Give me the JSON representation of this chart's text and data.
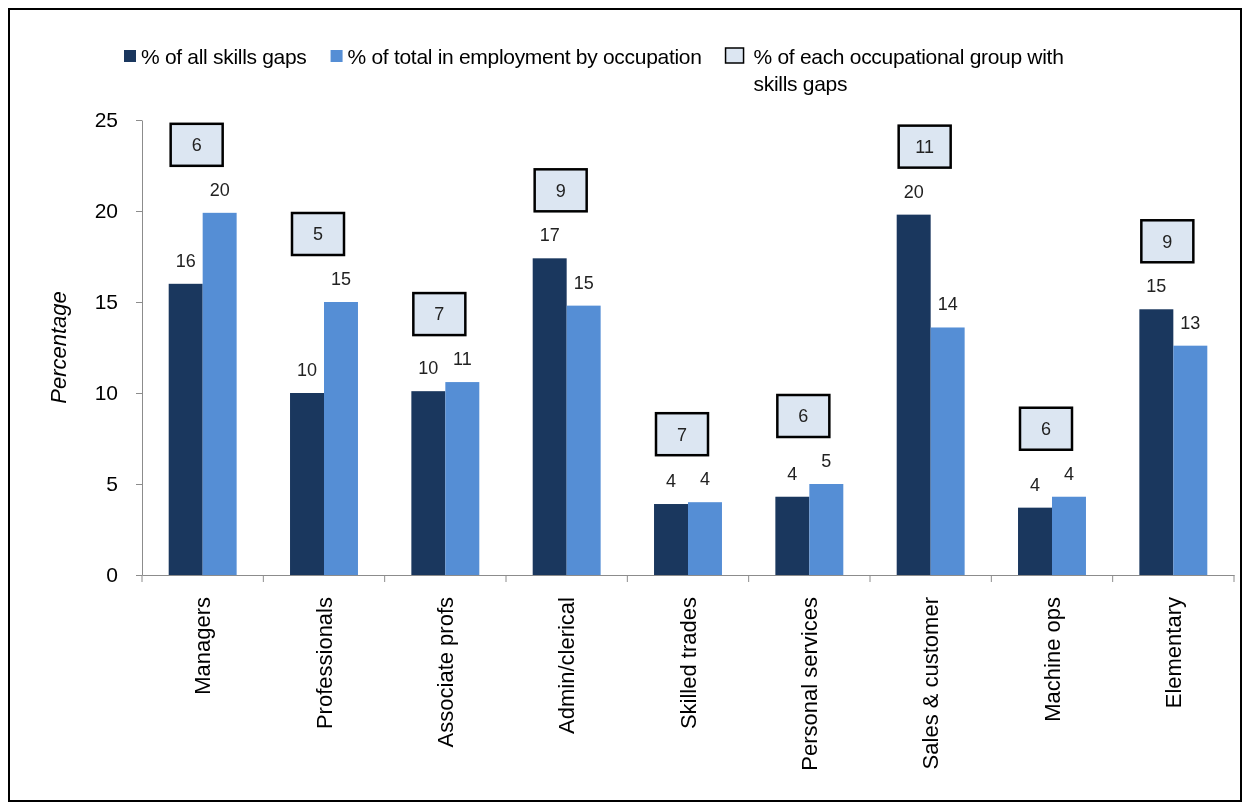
{
  "chart_data": {
    "type": "bar",
    "ylabel": "Percentage",
    "categories": [
      "Managers",
      "Professionals",
      "Associate profs",
      "Admin/clerical",
      "Skilled trades",
      "Personal services",
      "Sales & customer",
      "Machine ops",
      "Elementary"
    ],
    "series": [
      {
        "name": "% of all skills gaps",
        "color": "#1a375e",
        "values": [
          16.0,
          10.0,
          10.1,
          17.4,
          3.9,
          4.3,
          19.8,
          3.7,
          14.6
        ],
        "value_labels": [
          "16",
          "10",
          "10",
          "17",
          "4",
          "4",
          "20",
          "4",
          "15"
        ]
      },
      {
        "name": "% of total in employment by occupation",
        "color": "#558ed5",
        "values": [
          19.9,
          15.0,
          10.6,
          14.8,
          4.0,
          5.0,
          13.6,
          4.3,
          12.6
        ],
        "value_labels": [
          "20",
          "15",
          "11",
          "15",
          "4",
          "5",
          "14",
          "4",
          "13"
        ]
      }
    ],
    "annotations": [
      "% of each occupational group with skills gaps",
      "6",
      "5",
      "7",
      "9",
      "7",
      "6",
      "11",
      "6",
      "9"
    ],
    "ylim": [
      0,
      25
    ],
    "yticks": [
      0,
      5,
      10,
      15,
      20,
      25
    ],
    "legend": "top"
  }
}
